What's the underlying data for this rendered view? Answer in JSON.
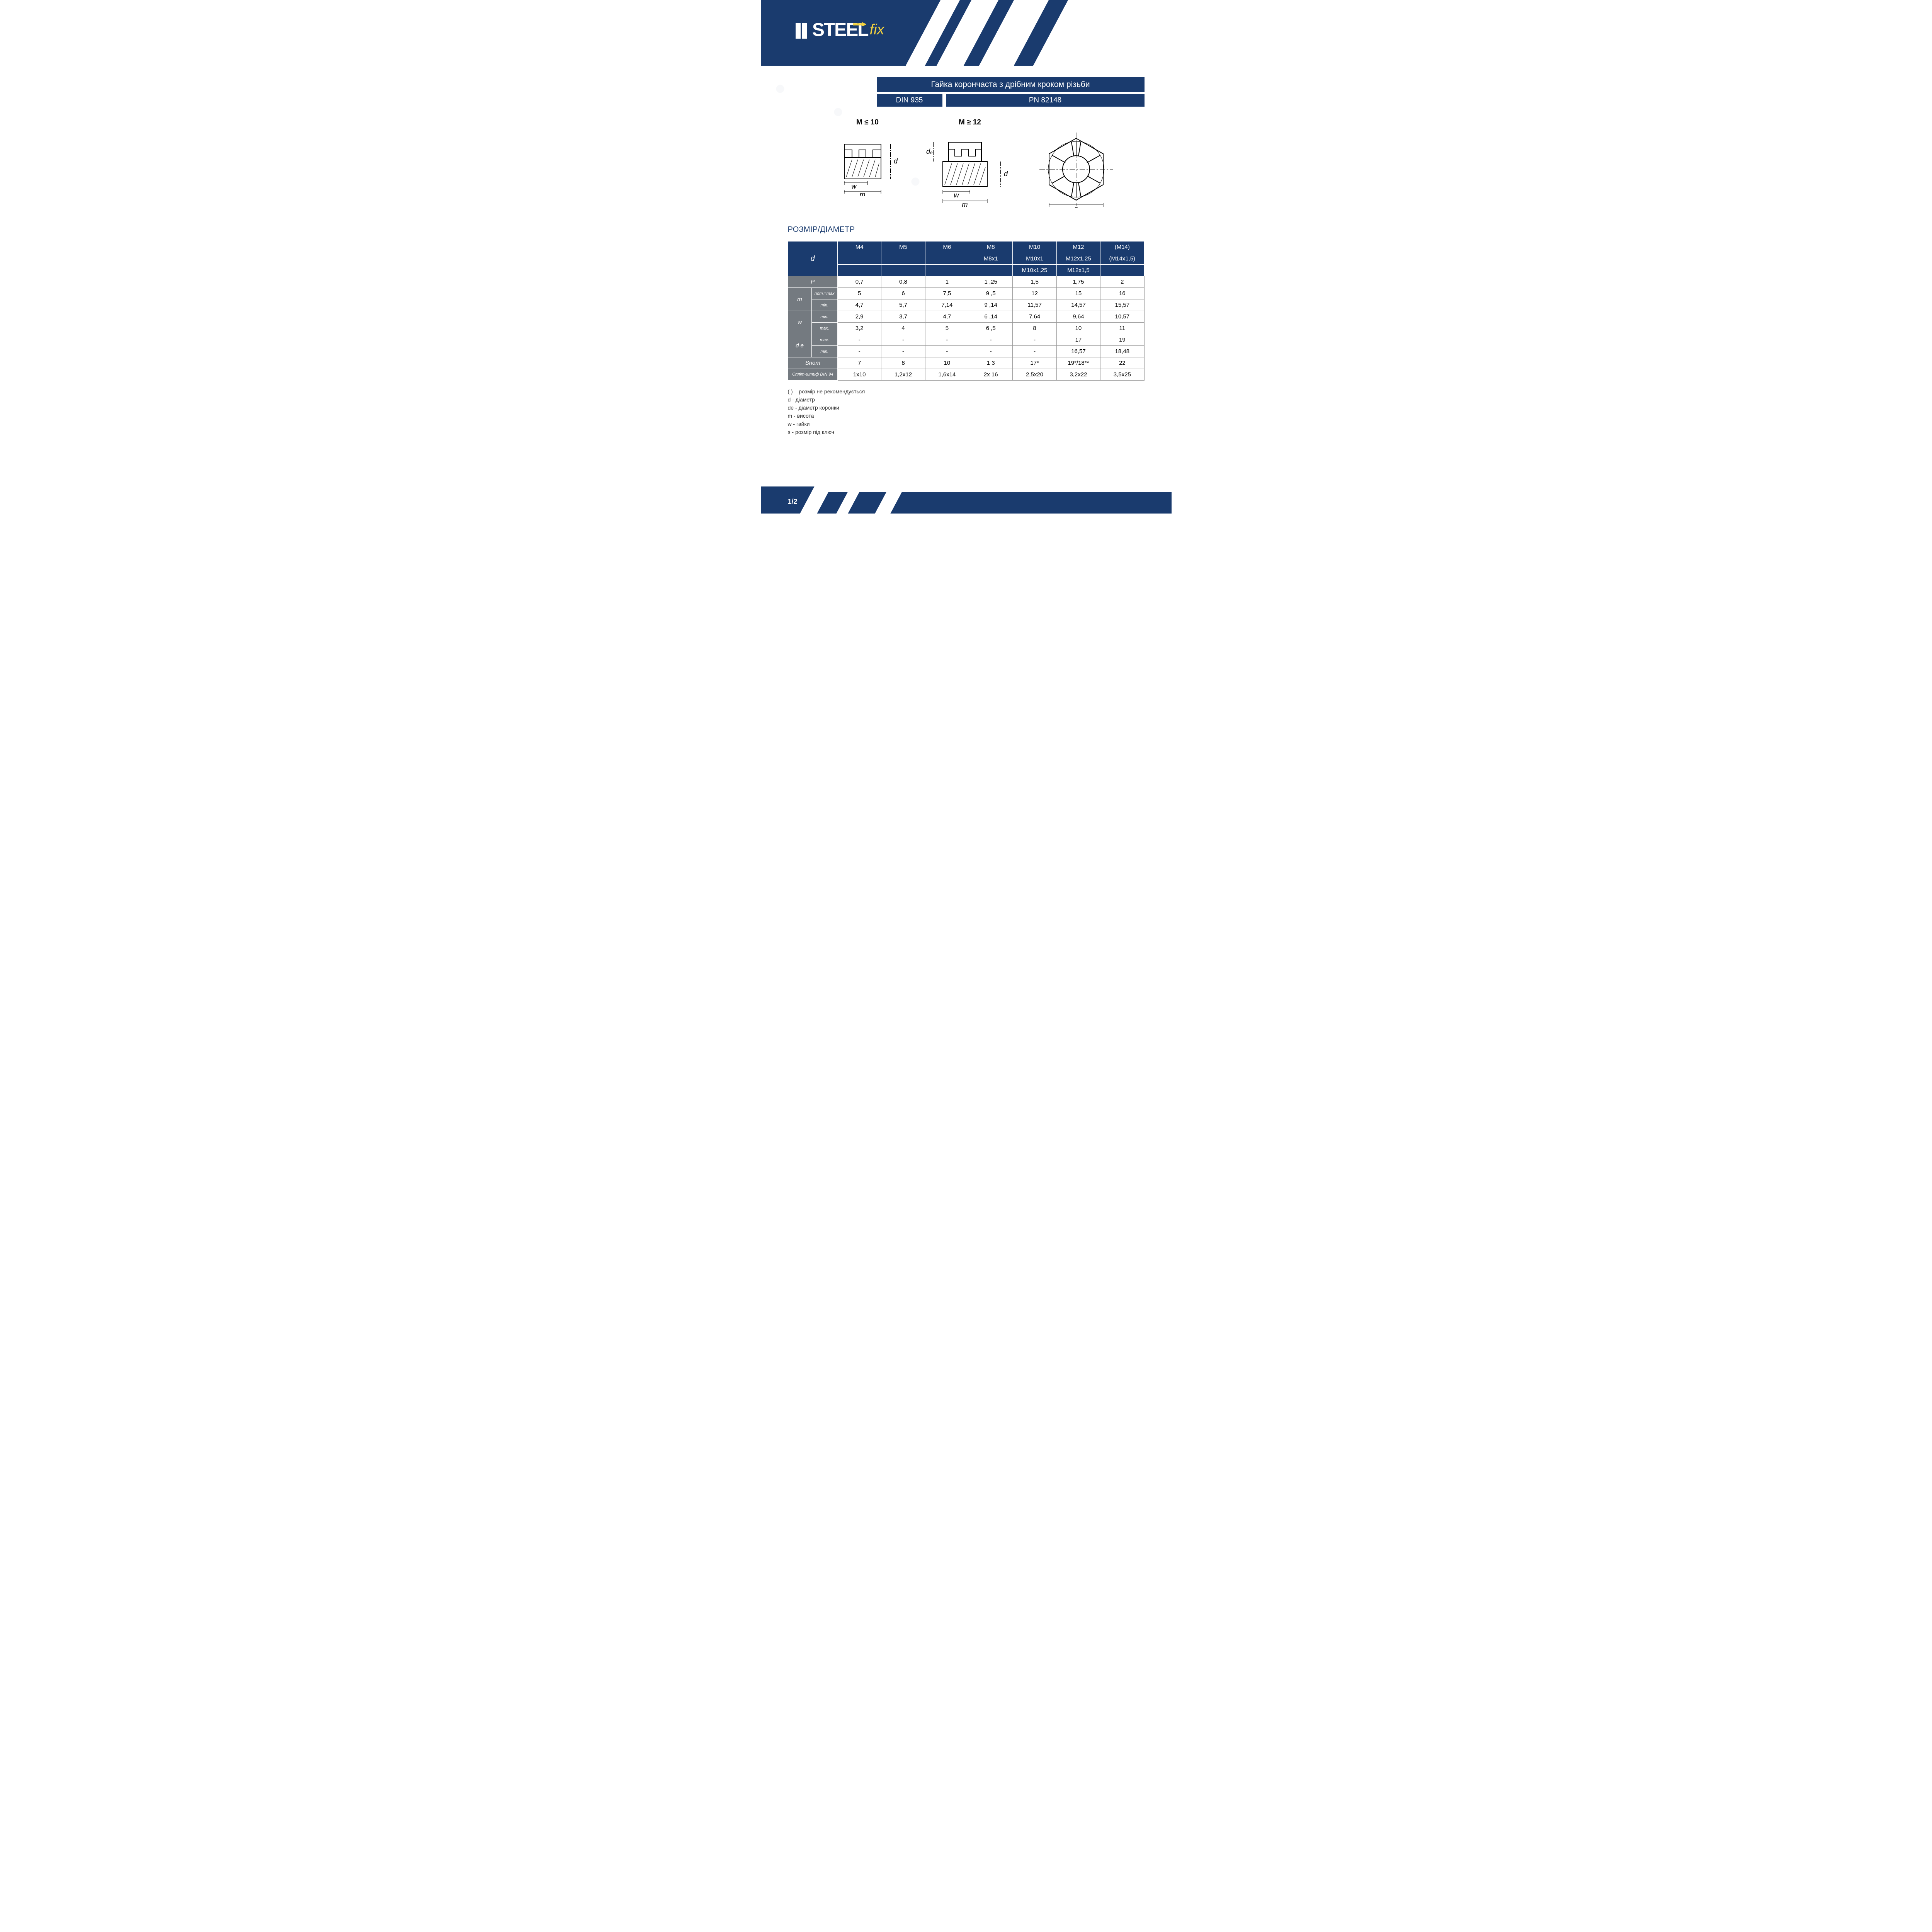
{
  "brand": {
    "part1": "STEEL",
    "part2": "fix"
  },
  "title": "Гайка корончаста з дрібним кроком різьби",
  "standards": {
    "din": "DIN 935",
    "pn": "PN 82148"
  },
  "diagrams": {
    "left_label": "M ≤ 10",
    "mid_label": "M ≥ 12",
    "dim_d": "d",
    "dim_de": "dₑ",
    "dim_w": "w",
    "dim_m": "m",
    "dim_s": "s"
  },
  "section_heading": "РОЗМІР/ДІАМЕТР",
  "colors": {
    "navy": "#1a3b6e",
    "grey": "#747a80",
    "yellow": "#f4d23e",
    "border": "#999999"
  },
  "table": {
    "d_label": "d",
    "sizes_r1": [
      "M4",
      "M5",
      "M6",
      "M8",
      "M10",
      "M12",
      "(M14)"
    ],
    "sizes_r2": [
      "",
      "",
      "",
      "M8x1",
      "M10x1",
      "M12x1,25",
      "(M14x1,5)"
    ],
    "sizes_r3": [
      "",
      "",
      "",
      "",
      "M10x1,25",
      "M12x1,5",
      ""
    ],
    "rows": [
      {
        "head": "P",
        "sub": "",
        "cells": [
          "0,7",
          "0,8",
          "1",
          "1  ,25",
          "1,5",
          "1,75",
          "2"
        ]
      },
      {
        "head": "m",
        "sub": "nom.=max",
        "cells": [
          "5",
          "6",
          "7,5",
          "9  ,5",
          "12",
          "15",
          "16"
        ]
      },
      {
        "head": "",
        "sub": "min.",
        "cells": [
          "4,7",
          "5,7",
          "7,14",
          "9  ,14",
          "11,57",
          "14,57",
          "15,57"
        ]
      },
      {
        "head": "w",
        "sub": "min.",
        "cells": [
          "2,9",
          "3,7",
          "4,7",
          "6  ,14",
          "7,64",
          "9,64",
          "10,57"
        ]
      },
      {
        "head": "",
        "sub": "max.",
        "cells": [
          "3,2",
          "4",
          "5",
          "6  ,5",
          "8",
          "10",
          "11"
        ]
      },
      {
        "head": "d e",
        "sub": "max.",
        "cells": [
          "-",
          "-",
          "-",
          "-",
          "-",
          "17",
          "19"
        ]
      },
      {
        "head": "",
        "sub": "min.",
        "cells": [
          "-",
          "-",
          "-",
          "-",
          "-",
          "16,57",
          "18,48"
        ]
      },
      {
        "head": "Snom",
        "sub": "",
        "cells": [
          "7",
          "8",
          "10",
          "1  3",
          "17*",
          "19*/18**",
          "22"
        ]
      },
      {
        "head": "Спліт-штиф DIN 94",
        "sub": "",
        "cells": [
          "1x10",
          "1,2x12",
          "1,6x14",
          "2x  16",
          "2,5x20",
          "3,2x22",
          "3,5x25"
        ]
      }
    ]
  },
  "legend": [
    "( ) – розмір не рекомендується",
    "d - діаметр",
    "de - діаметр коронки",
    "m - висота",
    "w - гайки",
    "s - розмір під ключ"
  ],
  "page_number": "1/2"
}
